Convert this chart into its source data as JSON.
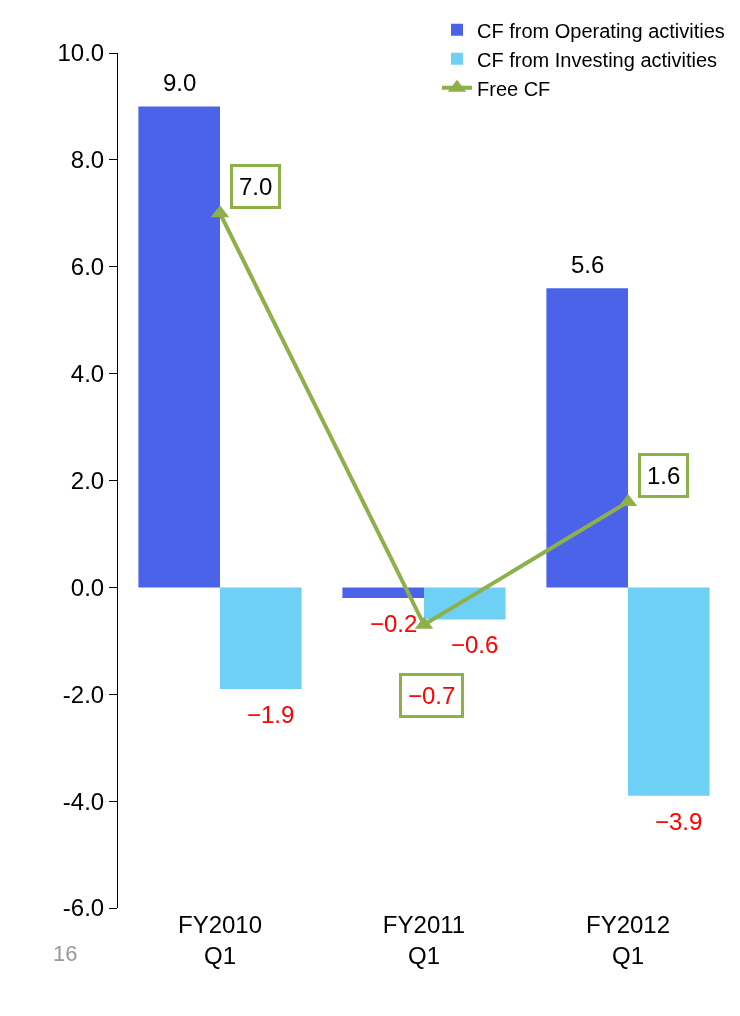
{
  "chart_data": {
    "type": "bar",
    "categories": [
      "FY2010\nQ1",
      "FY2011\nQ1",
      "FY2012\nQ1"
    ],
    "series": [
      {
        "name": "CF from Operating activities",
        "color": "#4a63e8",
        "values": [
          9.0,
          -0.2,
          5.6
        ],
        "value_labels": [
          "9.0",
          "−0.2",
          "5.6"
        ]
      },
      {
        "name": "CF from Investing activities",
        "color": "#6fd0f5",
        "values": [
          -1.9,
          -0.6,
          -3.9
        ],
        "value_labels": [
          "−1.9",
          "−0.6",
          "−3.9"
        ]
      },
      {
        "name": "Free CF",
        "type": "line",
        "color": "#8db04a",
        "marker": "triangle",
        "values": [
          7.0,
          -0.7,
          1.6
        ],
        "value_labels": [
          "7.0",
          "−0.7",
          "1.6"
        ]
      }
    ],
    "ylim": [
      -6,
      10
    ],
    "yticks": [
      {
        "value": -6,
        "label": "-6.0"
      },
      {
        "value": -4,
        "label": "-4.0"
      },
      {
        "value": -2,
        "label": "-2.0"
      },
      {
        "value": 0,
        "label": "0.0"
      },
      {
        "value": 2,
        "label": "2.0"
      },
      {
        "value": 4,
        "label": "4.0"
      },
      {
        "value": 6,
        "label": "6.0"
      },
      {
        "value": 8,
        "label": "8.0"
      },
      {
        "value": 10,
        "label": "10.0"
      }
    ],
    "grid": false,
    "legend": "top right",
    "annotations": [
      "16"
    ]
  }
}
